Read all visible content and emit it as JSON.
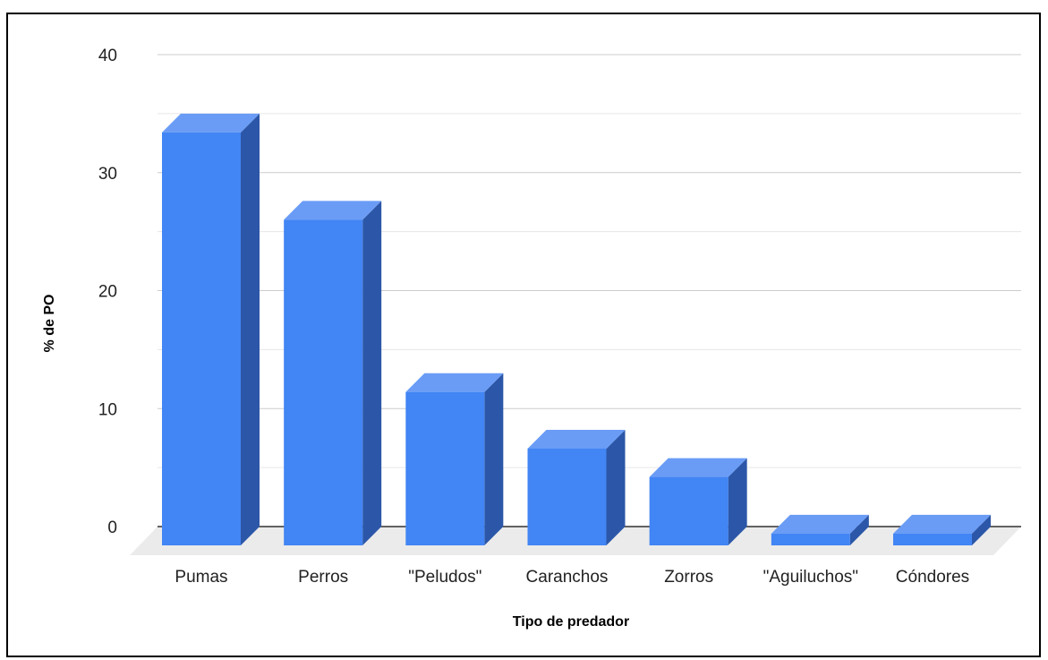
{
  "chart_data": {
    "type": "bar",
    "style": "3d",
    "categories": [
      "Pumas",
      "Perros",
      "\"Peludos\"",
      "Caranchos",
      "Zorros",
      "\"Aguiluchos\"",
      "Cóndores"
    ],
    "values": [
      35,
      27.6,
      13,
      8.2,
      5.8,
      1,
      1
    ],
    "xlabel": "Tipo de predador",
    "ylabel": "% de PO",
    "ylim": [
      0,
      40
    ],
    "yticks": [
      0,
      10,
      20,
      30,
      40
    ],
    "grid": true,
    "colors": {
      "bar_front": "#4285f4",
      "bar_top": "#6a9cf6",
      "bar_side": "#2c57a8",
      "floor": "#ebebeb",
      "gridline": "#cccccc",
      "minor_gridline": "#e6e6e6",
      "baseline": "#333333"
    }
  }
}
